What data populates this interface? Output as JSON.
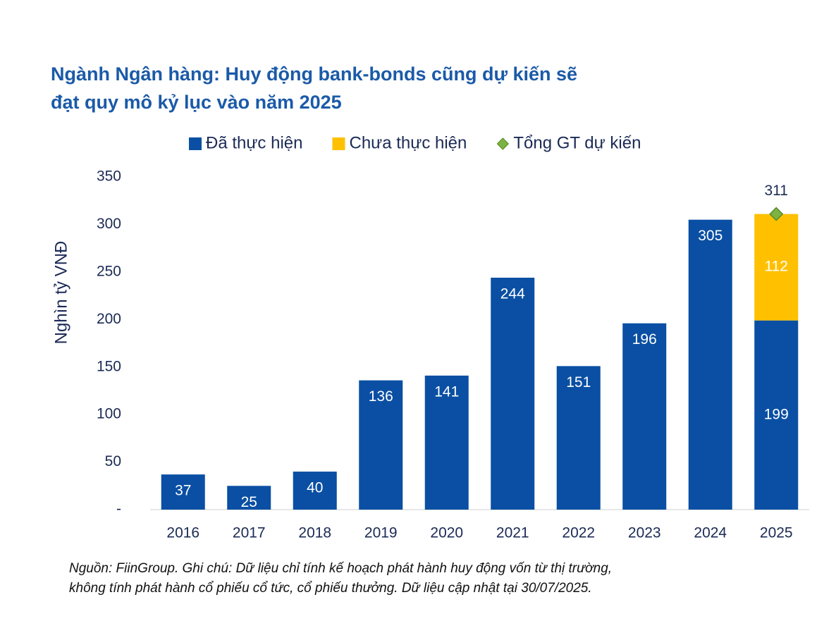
{
  "chart_data": {
    "type": "bar",
    "stacked": true,
    "title": [
      "Ngành Ngân hàng: Huy động bank-bonds cũng dự kiến sẽ",
      "đạt quy mô kỷ lục vào năm 2025"
    ],
    "y_label": "Nghìn tỷ VNĐ",
    "categories": [
      "2016",
      "2017",
      "2018",
      "2019",
      "2020",
      "2021",
      "2022",
      "2023",
      "2024",
      "2025"
    ],
    "series": [
      {
        "name": "Đã thực hiện",
        "color": "#0a4fa3",
        "type": "bar",
        "values": [
          37,
          25,
          40,
          136,
          141,
          244,
          151,
          196,
          305,
          199
        ]
      },
      {
        "name": "Chưa thực hiện",
        "color": "#ffc000",
        "type": "bar",
        "values": [
          null,
          null,
          null,
          null,
          null,
          null,
          null,
          null,
          null,
          112
        ]
      },
      {
        "name": "Tổng GT dự kiến",
        "color": "#7cb342",
        "type": "scatter",
        "marker": "diamond",
        "values": [
          null,
          null,
          null,
          null,
          null,
          null,
          null,
          null,
          null,
          311
        ]
      }
    ],
    "ylim": [
      0,
      350
    ],
    "yticks": [
      {
        "value": 0,
        "label": "-"
      },
      50,
      100,
      150,
      200,
      250,
      300,
      350
    ],
    "grid": false,
    "legend": "top",
    "note": [
      "Nguồn: FiinGroup. Ghi chú: Dữ liệu chỉ tính kế hoạch phát hành huy động vốn từ thị trường,",
      "không tính phát hành cổ phiếu cổ tức, cổ phiếu thưởng. Dữ liệu cập nhật tại 30/07/2025."
    ]
  }
}
